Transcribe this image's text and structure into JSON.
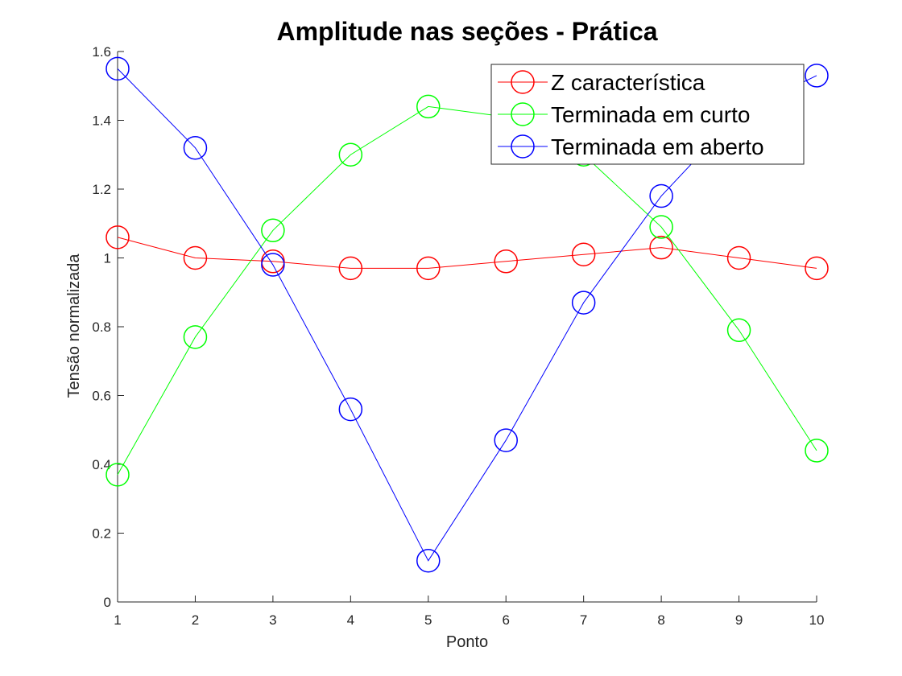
{
  "chart_data": {
    "type": "line",
    "title": "Amplitude nas seções - Prática",
    "xlabel": "Ponto",
    "ylabel": "Tensão normalizada",
    "xlim": [
      1,
      10
    ],
    "ylim": [
      0,
      1.6
    ],
    "x": [
      1,
      2,
      3,
      4,
      5,
      6,
      7,
      8,
      9,
      10
    ],
    "xticks": [
      "1",
      "2",
      "3",
      "4",
      "5",
      "6",
      "7",
      "8",
      "9",
      "10"
    ],
    "yticks": [
      "0",
      "0.2",
      "0.4",
      "0.6",
      "0.8",
      "1",
      "1.2",
      "1.4",
      "1.6"
    ],
    "grid": false,
    "legend_position": "top-right",
    "marker": "circle",
    "series": [
      {
        "name": "Z característica",
        "color": "#ff0000",
        "values": [
          1.06,
          1.0,
          0.99,
          0.97,
          0.97,
          0.99,
          1.01,
          1.03,
          1.0,
          0.97
        ]
      },
      {
        "name": "Terminada em curto",
        "color": "#00ff00",
        "values": [
          0.37,
          0.77,
          1.08,
          1.3,
          1.44,
          1.41,
          1.3,
          1.09,
          0.79,
          0.44
        ]
      },
      {
        "name": "Terminada em aberto",
        "color": "#0000ff",
        "values": [
          1.55,
          1.32,
          0.98,
          0.56,
          0.12,
          0.47,
          0.87,
          1.18,
          1.42,
          1.53
        ]
      }
    ]
  }
}
